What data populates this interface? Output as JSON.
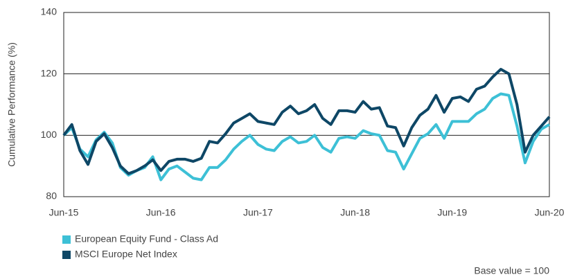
{
  "chart_data": {
    "type": "line",
    "ylabel": "Cumulative Performance (%)",
    "annotation": "Base value = 100",
    "categories": [
      "Jun-15",
      null,
      null,
      null,
      null,
      null,
      null,
      null,
      null,
      null,
      null,
      null,
      "Jun-16",
      null,
      null,
      null,
      null,
      null,
      null,
      null,
      null,
      null,
      null,
      null,
      "Jun-17",
      null,
      null,
      null,
      null,
      null,
      null,
      null,
      null,
      null,
      null,
      null,
      "Jun-18",
      null,
      null,
      null,
      null,
      null,
      null,
      null,
      null,
      null,
      null,
      null,
      "Jun-19",
      null,
      null,
      null,
      null,
      null,
      null,
      null,
      null,
      null,
      null,
      null,
      "Jun-20"
    ],
    "series": [
      {
        "name": "European Equity Fund - Class Ad",
        "color": "#3dc0d6",
        "values": [
          100,
          102.5,
          95.5,
          93,
          98.5,
          101,
          97.5,
          89.5,
          87,
          88.5,
          89.5,
          93,
          85.5,
          89,
          90,
          88,
          86,
          85.5,
          89.5,
          89.5,
          92,
          95.5,
          98,
          100,
          97,
          95.5,
          95,
          98,
          99.5,
          97.5,
          98,
          100,
          96,
          94.5,
          99,
          99.5,
          99,
          101.5,
          100.5,
          100,
          95,
          94.5,
          89,
          94,
          99,
          100.5,
          103.5,
          99,
          104.5,
          104.5,
          104.5,
          107,
          108.5,
          112,
          113.5,
          113,
          103,
          91,
          98,
          102,
          103.5
        ]
      },
      {
        "name": "MSCI Europe Net Index",
        "color": "#0e4766",
        "values": [
          100,
          103.5,
          95,
          90.5,
          98,
          100.5,
          96,
          90,
          87.5,
          88.5,
          90,
          92,
          88.5,
          91.5,
          92.2,
          92.2,
          91.5,
          92.5,
          98,
          97.5,
          100.5,
          104,
          105.5,
          107,
          104.5,
          104,
          103.5,
          107.5,
          109.5,
          107,
          108,
          110,
          105.5,
          103.5,
          108,
          108,
          107.5,
          111,
          108.5,
          109,
          103,
          102.5,
          96.5,
          102.5,
          106.5,
          108.5,
          113,
          107.5,
          112,
          112.5,
          111,
          115,
          116,
          119,
          121.5,
          120,
          110,
          94.5,
          100,
          103,
          106
        ]
      }
    ],
    "ylim": [
      80,
      140
    ],
    "yticks": [
      80,
      100,
      120,
      140
    ],
    "grid": true
  }
}
